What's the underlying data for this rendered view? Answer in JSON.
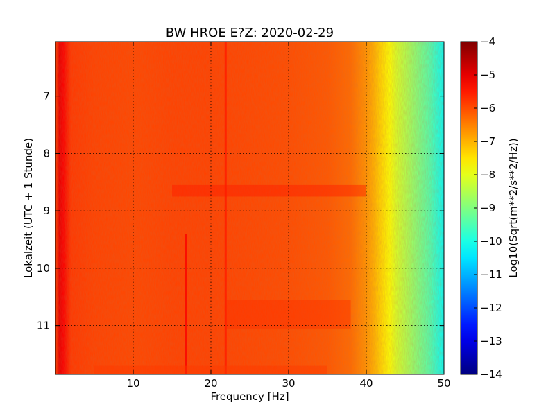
{
  "chart_data": {
    "type": "heatmap",
    "title": "BW HROE E?Z: 2020-02-29",
    "xlabel": "Frequency [Hz]",
    "ylabel": "Lokalzeit (UTC + 1 Stunde)",
    "xlim": [
      0,
      50
    ],
    "ylim": [
      11.85,
      6.05
    ],
    "y_inverted": true,
    "x_ticks": [
      10,
      20,
      30,
      40,
      50
    ],
    "y_ticks": [
      7,
      8,
      9,
      10,
      11
    ],
    "grid": true,
    "colormap": "jet",
    "colorbar": {
      "label": "Log10(Sqrt(m**2/s**2/Hz))",
      "range": [
        -14,
        -4
      ],
      "ticks": [
        -4,
        -5,
        -6,
        -7,
        -8,
        -9,
        -10,
        -11,
        -12,
        -13,
        -14
      ],
      "tick_labels": [
        "−4",
        "−5",
        "−6",
        "−7",
        "−8",
        "−9",
        "−10",
        "−11",
        "−12",
        "−13",
        "−14"
      ]
    },
    "frequency_profile": {
      "frequency_hz": [
        0,
        0.5,
        1,
        2,
        5,
        10,
        15,
        20,
        25,
        30,
        35,
        38,
        40,
        41,
        42,
        43,
        44,
        45,
        46,
        47,
        48,
        49,
        50
      ],
      "value": [
        -5.9,
        -5.0,
        -5.2,
        -5.8,
        -5.9,
        -5.95,
        -5.9,
        -5.9,
        -5.95,
        -6.0,
        -6.1,
        -6.3,
        -6.7,
        -7.0,
        -7.4,
        -7.8,
        -8.2,
        -8.5,
        -8.8,
        -9.1,
        -9.4,
        -9.8,
        -10.2
      ]
    },
    "features": [
      {
        "kind": "vertical-line",
        "frequency_hz": 16.8,
        "y_range": [
          9.4,
          11.85
        ],
        "value": -5.2
      },
      {
        "kind": "vertical-line",
        "frequency_hz": 21.9,
        "y_range": [
          6.05,
          11.85
        ],
        "value": -5.5
      },
      {
        "kind": "horizontal-band",
        "y_range": [
          8.55,
          8.75
        ],
        "x_range": [
          15,
          40
        ],
        "value": -5.5
      },
      {
        "kind": "horizontal-band",
        "y_range": [
          10.55,
          11.05
        ],
        "x_range": [
          22,
          38
        ],
        "value": -5.7
      },
      {
        "kind": "horizontal-band",
        "y_range": [
          11.7,
          11.85
        ],
        "x_range": [
          5,
          35
        ],
        "value": -5.8
      }
    ]
  }
}
